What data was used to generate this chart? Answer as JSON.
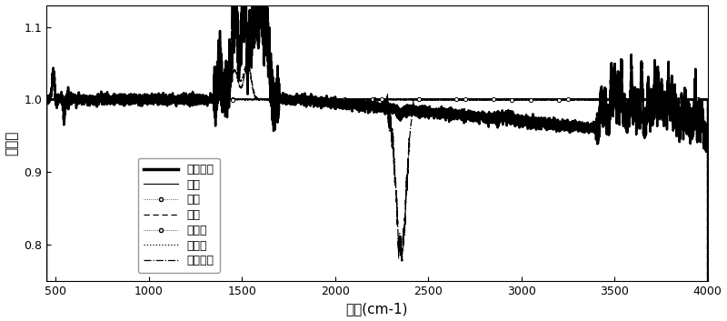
{
  "title": "",
  "xlabel": "波数(cm-1)",
  "ylabel": "透射率",
  "xlim": [
    450,
    4000
  ],
  "ylim": [
    0.75,
    1.13
  ],
  "yticks": [
    0.8,
    0.9,
    1.0,
    1.1
  ],
  "xticks": [
    500,
    1000,
    1500,
    2000,
    2500,
    3000,
    3500,
    4000
  ],
  "legend_labels": [
    "现场光谱",
    "甲烷",
    "乙烷",
    "丙烷",
    "异丁烷",
    "正丁烷",
    "二氧化碳"
  ],
  "background_color": "#ffffff",
  "line_color": "#000000",
  "noise_seed": 1234
}
